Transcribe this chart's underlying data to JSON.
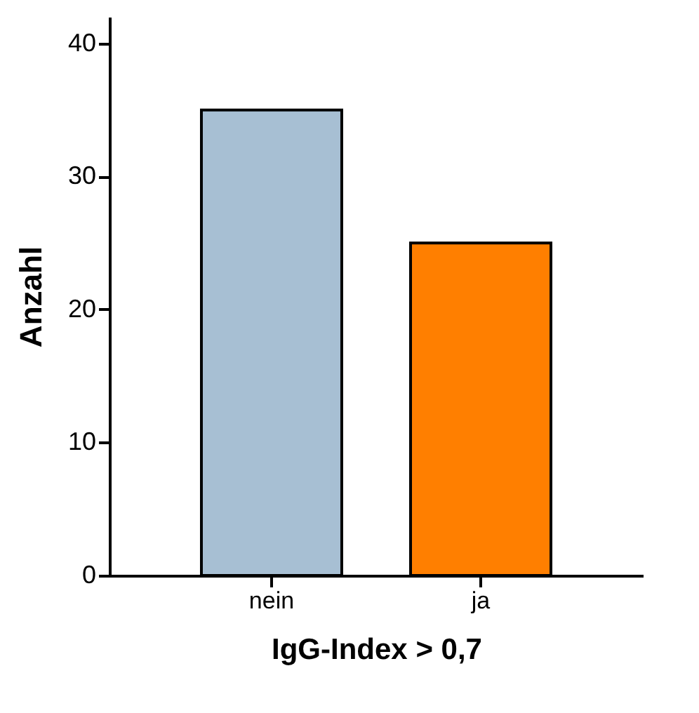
{
  "chart_data": {
    "type": "bar",
    "xlabel": "IgG-Index > 0,7",
    "ylabel": "Anzahl",
    "categories": [
      "nein",
      "ja"
    ],
    "values": [
      35,
      25
    ],
    "colors": [
      "#a7bfd3",
      "#ff7f00"
    ],
    "ylim": [
      0,
      42
    ],
    "yticks": [
      0,
      10,
      20,
      30,
      40
    ],
    "grid": false
  }
}
